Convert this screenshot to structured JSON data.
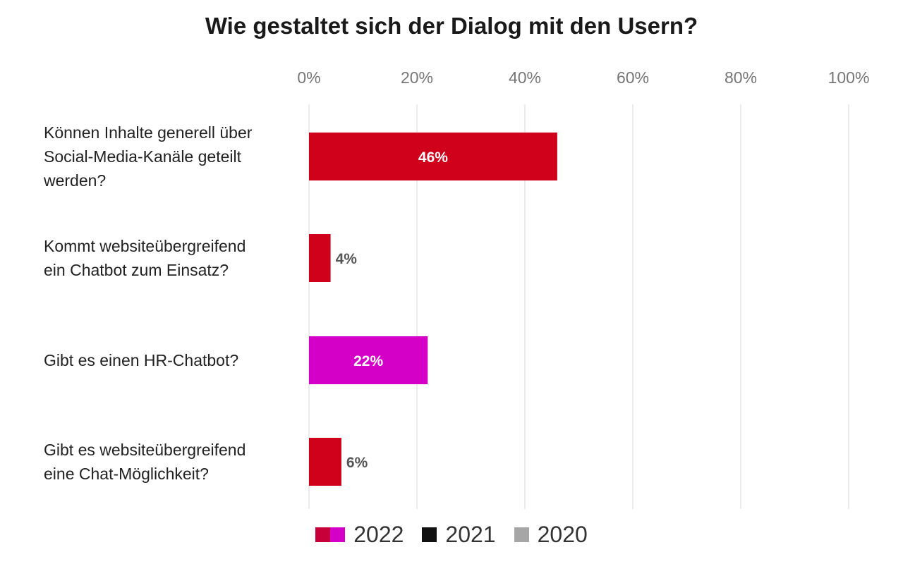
{
  "chart_data": {
    "type": "bar",
    "orientation": "horizontal",
    "title": "Wie gestaltet sich der Dialog mit den Usern?",
    "xlim": [
      0,
      100
    ],
    "x_ticks": [
      "0%",
      "20%",
      "40%",
      "60%",
      "80%",
      "100%"
    ],
    "grid": true,
    "categories": [
      [
        "Können Inhalte generell über",
        "Social-Media-Kanäle geteilt",
        "werden?"
      ],
      [
        "Kommt websiteübergreifend",
        "ein Chatbot zum Einsatz?"
      ],
      [
        "Gibt es einen HR-Chatbot?"
      ],
      [
        "Gibt es websiteübergreifend",
        "eine Chat-Möglichkeit?"
      ]
    ],
    "values": [
      46,
      4,
      22,
      6
    ],
    "value_labels": [
      "46%",
      "4%",
      "22%",
      "6%"
    ],
    "bar_colors": [
      "#d0021b",
      "#d0021b",
      "#d400c8",
      "#d0021b"
    ],
    "legend_position": "bottom-center",
    "legend": [
      {
        "label": "2022",
        "colors": [
          "#c8003a",
          "#d400c8"
        ]
      },
      {
        "label": "2021",
        "colors": [
          "#111111"
        ]
      },
      {
        "label": "2020",
        "colors": [
          "#a6a6a6"
        ]
      }
    ]
  }
}
